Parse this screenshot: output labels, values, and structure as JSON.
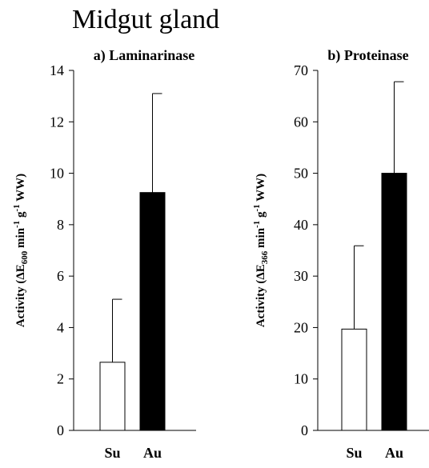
{
  "figure": {
    "title": "Midgut gland"
  },
  "chart_data": [
    {
      "type": "bar",
      "title": "a) Laminarinase",
      "ylabel_parts": {
        "prefix": "Activity (",
        "symbol": "ΔE",
        "sub": "600",
        "mid1": " min",
        "sup1": "-1",
        "mid2": " g",
        "sup2": "-1",
        "suffix": " WW)"
      },
      "categories": [
        "Su",
        "Au"
      ],
      "values": [
        2.65,
        9.25
      ],
      "errors": [
        2.45,
        3.85
      ],
      "fill_colors": [
        "#ffffff",
        "#000000"
      ],
      "ylim": [
        0,
        14
      ],
      "yticks": [
        0,
        2,
        4,
        6,
        8,
        10,
        12,
        14
      ],
      "grid": false,
      "legend": "none"
    },
    {
      "type": "bar",
      "title": "b) Proteinase",
      "ylabel_parts": {
        "prefix": "Activity (",
        "symbol": "ΔE",
        "sub": "366",
        "mid1": " min",
        "sup1": "-1",
        "mid2": " g",
        "sup2": "-1",
        "suffix": " WW)"
      },
      "categories": [
        "Su",
        "Au"
      ],
      "values": [
        19.7,
        50.0
      ],
      "errors": [
        16.2,
        17.8
      ],
      "fill_colors": [
        "#ffffff",
        "#000000"
      ],
      "ylim": [
        0,
        70
      ],
      "yticks": [
        0,
        10,
        20,
        30,
        40,
        50,
        60,
        70
      ],
      "grid": false,
      "legend": "none"
    }
  ]
}
